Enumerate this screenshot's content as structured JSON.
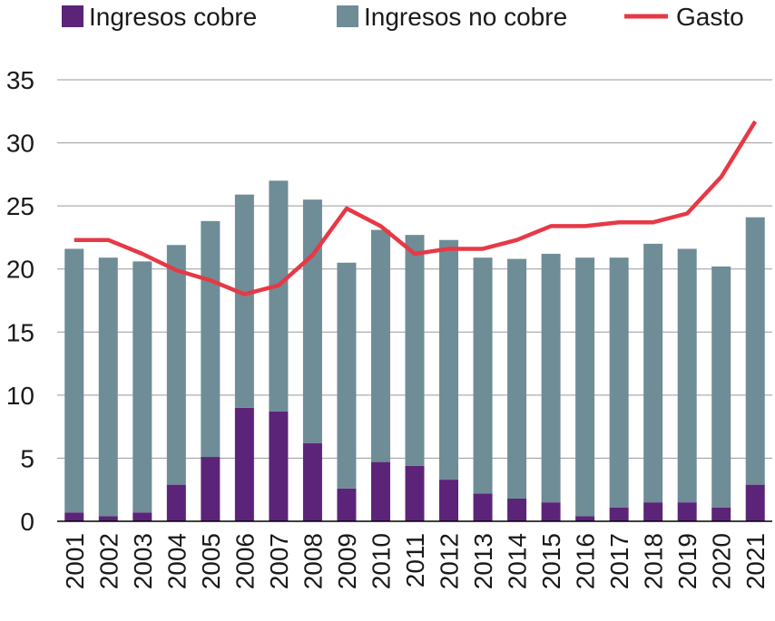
{
  "chart_data": {
    "type": "bar",
    "stacked": true,
    "categories": [
      "2001",
      "2002",
      "2003",
      "2004",
      "2005",
      "2006",
      "2007",
      "2008",
      "2009",
      "2010",
      "2011",
      "2012",
      "2013",
      "2014",
      "2015",
      "2016",
      "2017",
      "2018",
      "2019",
      "2020",
      "2021"
    ],
    "series": [
      {
        "name": "Ingresos cobre",
        "type": "bar",
        "color": "#5c2479",
        "values": [
          0.7,
          0.4,
          0.7,
          2.9,
          5.1,
          9.0,
          8.7,
          6.2,
          2.6,
          4.7,
          4.4,
          3.3,
          2.2,
          1.8,
          1.5,
          0.4,
          1.1,
          1.5,
          1.5,
          1.1,
          2.9
        ]
      },
      {
        "name": "Ingresos no cobre",
        "type": "bar",
        "color": "#6e8d97",
        "values": [
          20.9,
          20.5,
          19.9,
          19.0,
          18.7,
          16.9,
          18.3,
          19.3,
          17.9,
          18.4,
          18.3,
          19.0,
          18.7,
          19.0,
          19.7,
          20.5,
          19.8,
          20.5,
          20.1,
          19.1,
          21.2
        ]
      },
      {
        "name": "Gasto",
        "type": "line",
        "color": "#e63946",
        "values": [
          22.3,
          22.3,
          21.2,
          19.9,
          19.1,
          18.0,
          18.7,
          21.1,
          24.8,
          23.4,
          21.2,
          21.6,
          21.6,
          22.3,
          23.4,
          23.4,
          23.7,
          23.7,
          24.4,
          27.3,
          31.7
        ]
      }
    ],
    "ylim": [
      0,
      35
    ],
    "yticks": [
      "0",
      "5",
      "10",
      "15",
      "20",
      "25",
      "30",
      "35"
    ],
    "ytick_values": [
      0,
      5,
      10,
      15,
      20,
      25,
      30,
      35
    ],
    "grid": "horizontal",
    "legend_position": "top",
    "title": "",
    "xlabel": "",
    "ylabel": ""
  }
}
